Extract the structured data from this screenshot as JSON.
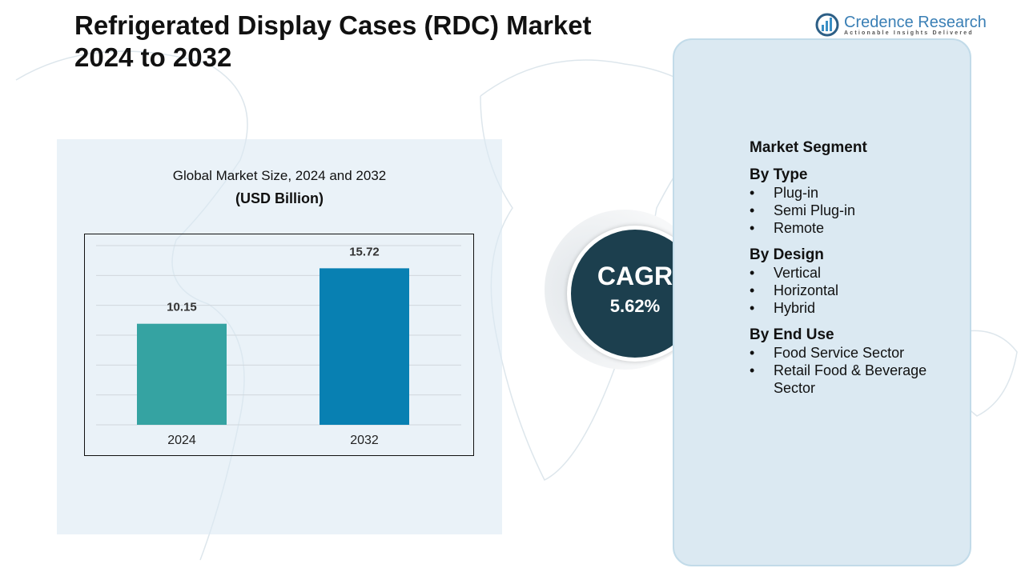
{
  "header": {
    "title_line1": "Refrigerated Display Cases (RDC) Market",
    "title_line2": "2024 to 2032"
  },
  "logo": {
    "name": "Credence Research",
    "tagline": "Actionable Insights Delivered"
  },
  "chart_data": {
    "type": "bar",
    "title": "Global Market Size, 2024 and 2032",
    "subtitle": "(USD Billion)",
    "categories": [
      "2024",
      "2032"
    ],
    "values": [
      10.15,
      15.72
    ],
    "colors": [
      "#35a3a2",
      "#0880b2"
    ],
    "ylim": [
      0,
      18
    ],
    "grid": true
  },
  "cagr": {
    "label": "CAGR",
    "value": "5.62%"
  },
  "segments": {
    "title": "Market Segment",
    "groups": [
      {
        "name": "By Type",
        "items": [
          "Plug-in",
          "Semi Plug-in",
          "Remote"
        ]
      },
      {
        "name": "By Design",
        "items": [
          "Vertical",
          "Horizontal",
          "Hybrid"
        ]
      },
      {
        "name": "By End Use",
        "items": [
          "Food Service Sector",
          "Retail Food & Beverage Sector"
        ]
      }
    ]
  }
}
